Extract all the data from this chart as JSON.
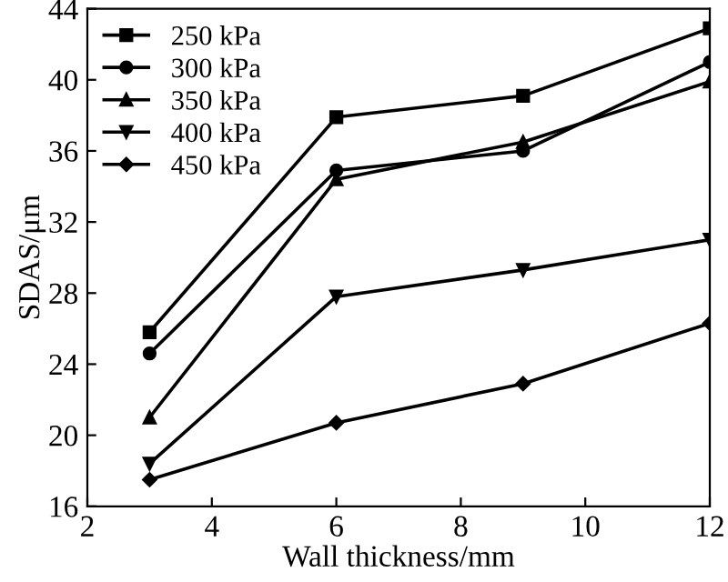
{
  "chart_data": {
    "type": "line",
    "xlabel": "Wall thickness/mm",
    "ylabel": "SDAS/μm",
    "x": [
      3,
      6,
      9,
      12
    ],
    "series": [
      {
        "name": "250 kPa",
        "color": "#000000",
        "marker": "square",
        "values": [
          25.8,
          37.9,
          39.1,
          42.9
        ]
      },
      {
        "name": "300 kPa",
        "color": "#000000",
        "marker": "circle",
        "values": [
          24.6,
          34.9,
          36.0,
          41.0
        ]
      },
      {
        "name": "350 kPa",
        "color": "#000000",
        "marker": "triangle",
        "values": [
          21.0,
          34.4,
          36.5,
          39.9
        ]
      },
      {
        "name": "400 kPa",
        "color": "#000000",
        "marker": "triangle_down",
        "values": [
          18.4,
          27.8,
          29.3,
          31.0
        ]
      },
      {
        "name": "450 kPa",
        "color": "#000000",
        "marker": "diamond",
        "values": [
          17.5,
          20.7,
          22.9,
          26.3
        ]
      }
    ],
    "xlim": [
      2,
      12
    ],
    "xticks": [
      2,
      4,
      6,
      8,
      10,
      12
    ],
    "ylim": [
      16,
      44
    ],
    "yticks": [
      16,
      20,
      24,
      28,
      32,
      36,
      40,
      44
    ],
    "grid": false,
    "legend": "top left",
    "line_style": "solid"
  }
}
